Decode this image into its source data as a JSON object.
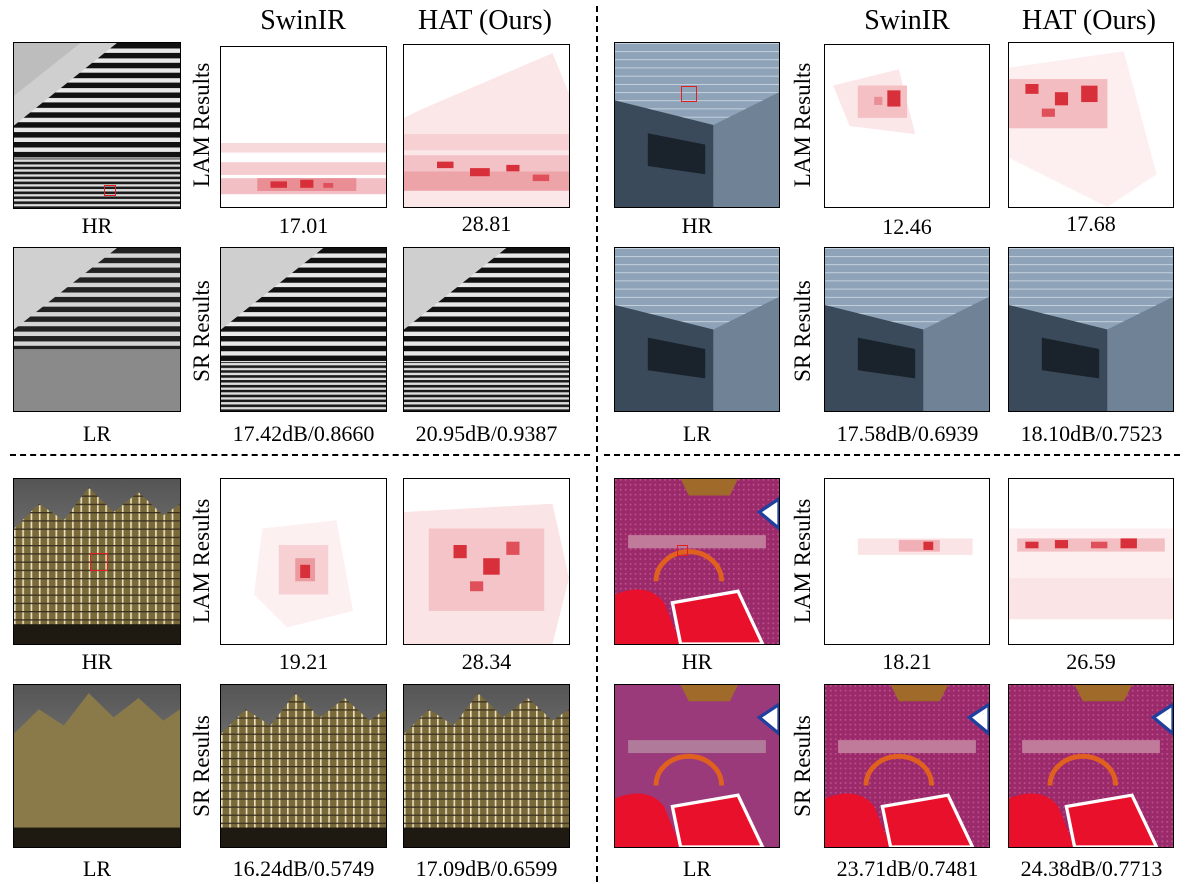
{
  "column_headers": {
    "swinir": "SwinIR",
    "hat": "HAT (Ours)"
  },
  "row_labels": {
    "lam": "LAM Results",
    "sr": "SR Results"
  },
  "image_labels": {
    "hr": "HR",
    "lr": "LR"
  },
  "quadrants": [
    {
      "lam": {
        "swinir": "17.01",
        "hat": "28.81"
      },
      "sr": {
        "swinir": "17.42dB/0.8660",
        "hat": "20.95dB/0.9387"
      }
    },
    {
      "lam": {
        "swinir": "12.46",
        "hat": "17.68"
      },
      "sr": {
        "swinir": "17.58dB/0.6939",
        "hat": "18.10dB/0.7523"
      }
    },
    {
      "lam": {
        "swinir": "19.21",
        "hat": "28.34"
      },
      "sr": {
        "swinir": "16.24dB/0.5749",
        "hat": "17.09dB/0.6599"
      }
    },
    {
      "lam": {
        "swinir": "18.21",
        "hat": "26.59"
      },
      "sr": {
        "swinir": "23.71dB/0.7481",
        "hat": "24.38dB/0.7713"
      }
    }
  ],
  "colors": {
    "heatmap": "#e0202a",
    "roi_box": "#e02020"
  }
}
